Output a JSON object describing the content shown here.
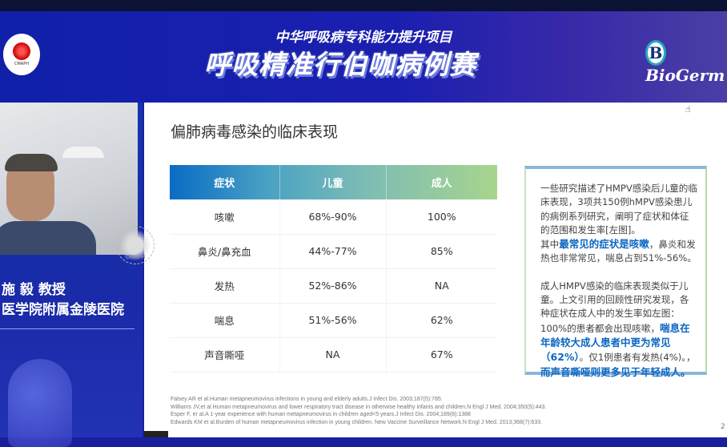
{
  "banner": {
    "subtitle": "中华呼吸病专科能力提升项目",
    "title": "呼吸精准行伯咖病例赛",
    "left_logo_text": "CMAPH",
    "right_logo": "BioGerm"
  },
  "speaker": {
    "name": "施 毅 教授",
    "hospital": "医学院附属金陵医院"
  },
  "watermark": "CMAPH",
  "slide": {
    "title": "偏肺病毒感染的临床表现",
    "table": {
      "headers": [
        "症状",
        "儿童",
        "成人"
      ],
      "rows": [
        [
          "咳嗽",
          "68%-90%",
          "100%"
        ],
        [
          "鼻炎/鼻充血",
          "44%-77%",
          "85%"
        ],
        [
          "发热",
          "52%-86%",
          "NA"
        ],
        [
          "喘息",
          "51%-56%",
          "62%"
        ],
        [
          "声音嘶哑",
          "NA",
          "67%"
        ]
      ]
    },
    "info": {
      "p1_a": "一些研究描述了HMPV感染后儿童的临床表现，3项共150例hMPV感染患儿的病例系列研究，阐明了症状和体征的范围和发生率[左图]。",
      "p1_b": "其中",
      "p1_hl": "最常见的症状是咳嗽",
      "p1_c": "，鼻炎和发热也非常常见，喘息占到51%-56%。",
      "p2_a": "成人HMPV感染的临床表现类似于儿童。上文引用的回顾性研究发现，各种症状在成人中的发生率如左图：100%的患者都会出现咳嗽，",
      "p2_hl1": "喘息在年龄较大成人患者中更为常见（62%）",
      "p2_b": "。仅1例患者有发热(4%)。，",
      "p2_hl2": "而声音嘶哑则更多见于年轻成人。"
    },
    "references": [
      "Falsey AR et al.Human metapneumovirus infections in young and elderly adults.J Infect Dis. 2003;187(5):785.",
      "Williams JV,et al.Human metapneumovirus and lower respiratory tract disease in otherwise healthy infants and children.N Engl J Med. 2004;350(5):443.",
      "Esper F, er al.A 1-year experience with human metapneumovirus in children aged<5 years.J Infect Dis. 2004;189(8):1388",
      "Edwards KM et al.Burden of human metapneumovirus infection in young children. New Vaccine Surveillance Network.N Engl J Med. 2013;368(7):633."
    ],
    "page_number": "2"
  },
  "colors": {
    "banner": "#1b1fb0",
    "highlight": "#0b66c2"
  }
}
